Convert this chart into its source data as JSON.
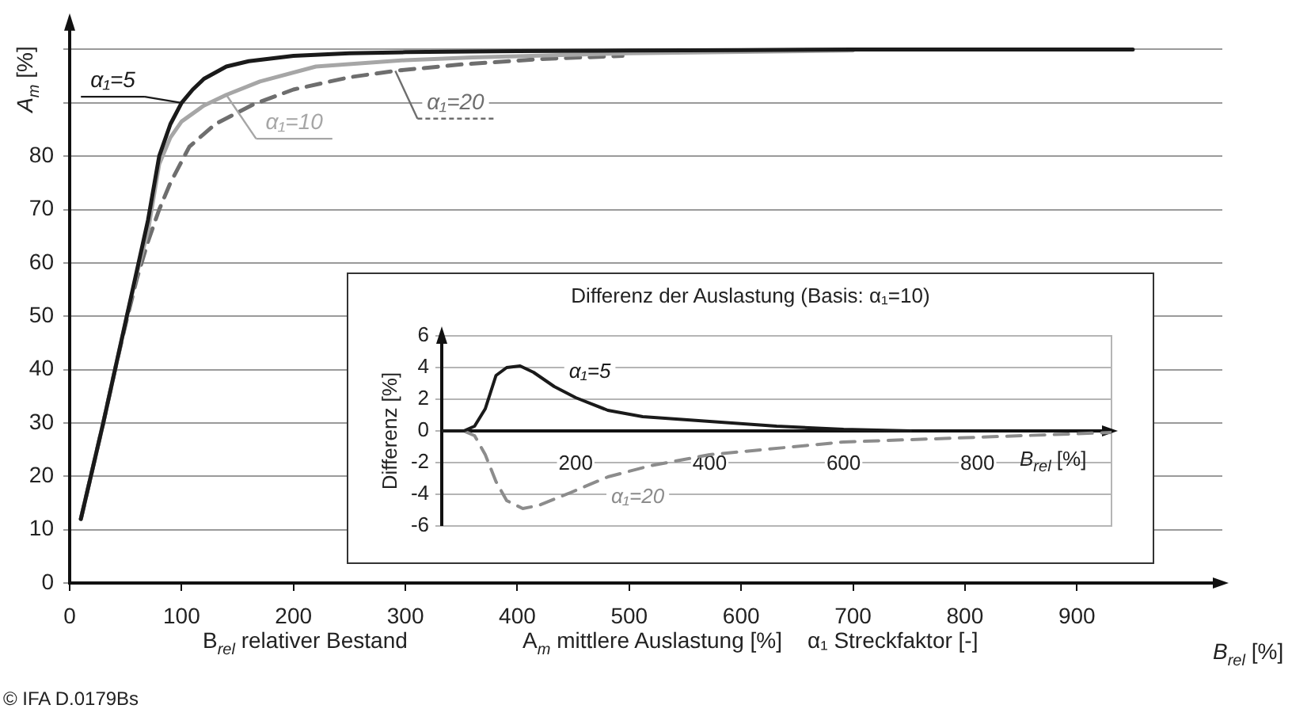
{
  "chart_data": [
    {
      "type": "line",
      "xlabel": "B$_{rel}$ [%]",
      "ylabel": "A$_{m}$ [%]",
      "xlim": [
        0,
        1030
      ],
      "ylim": [
        0,
        105
      ],
      "xticks": [
        0,
        100,
        200,
        300,
        400,
        500,
        600,
        700,
        800,
        900
      ],
      "yticks": [
        0,
        10,
        20,
        30,
        40,
        50,
        60,
        70,
        80,
        {
          "value": 90,
          "label": null
        },
        {
          "value": 100,
          "label": null
        }
      ],
      "grid": "y",
      "legend": "top left",
      "marker": "none",
      "annotations": [
        "B$_{rel}$   relativer Bestand",
        "A$_{m}$   mittlere Auslastung [%]",
        "α₁   Streckfaktor [-]",
        "© IFA D.0179Bs"
      ],
      "series": [
        {
          "name": "α₁=5",
          "color": "#1a1a1a",
          "line_style": "solid",
          "x": [
            10,
            20,
            30,
            40,
            50,
            60,
            70,
            80,
            90,
            100,
            110,
            120,
            140,
            160,
            200,
            250,
            300,
            400,
            500,
            600,
            700,
            800,
            950
          ],
          "values": [
            12,
            21,
            30,
            39.5,
            49,
            58.5,
            68,
            80,
            86,
            90,
            92.5,
            94.5,
            96.8,
            97.8,
            98.8,
            99.3,
            99.5,
            99.7,
            99.8,
            99.9,
            100,
            100,
            100
          ]
        },
        {
          "name": "α₁=10",
          "color": "#a6a6a6",
          "line_style": "solid",
          "x": [
            10,
            20,
            30,
            40,
            50,
            60,
            70,
            80,
            90,
            100,
            120,
            140,
            170,
            220,
            300,
            360,
            500,
            700
          ],
          "values": [
            12,
            21,
            30,
            39.5,
            49,
            58,
            66,
            78.5,
            83.5,
            86.5,
            89.5,
            91.5,
            94,
            96.8,
            98,
            98.5,
            99.3,
            99.8
          ]
        },
        {
          "name": "α₁=20",
          "color": "#6e6e6e",
          "line_style": "dashed",
          "x": [
            10,
            20,
            30,
            40,
            50,
            60,
            70,
            80,
            90,
            107,
            130,
            164,
            200,
            250,
            291,
            350,
            420,
            494
          ],
          "values": [
            12,
            21,
            30,
            39.5,
            48.5,
            57,
            64,
            70,
            75,
            81.8,
            86,
            89.7,
            92.5,
            94.8,
            96,
            97.2,
            98.2,
            98.8
          ]
        }
      ]
    },
    {
      "type": "line",
      "title": "Differenz der Auslastung (Basis: α₁=10)",
      "xlabel": "B$_{rel}$ [%]",
      "ylabel": "Differenz [%]",
      "xlim": [
        0,
        1000
      ],
      "ylim": [
        -6,
        6
      ],
      "xticks": [
        200,
        400,
        600,
        800
      ],
      "yticks": [
        -6,
        -4,
        -2,
        0,
        2,
        4,
        6
      ],
      "grid": "y",
      "marker": "none",
      "series": [
        {
          "name": "α₁=5",
          "color": "#1a1a1a",
          "line_style": "solid",
          "x": [
            0,
            33,
            49,
            65,
            81,
            97,
            117,
            137,
            168,
            200,
            248,
            300,
            400,
            500,
            600,
            700
          ],
          "values": [
            0,
            0,
            0.3,
            1.4,
            3.5,
            4,
            4.1,
            3.7,
            2.8,
            2.1,
            1.3,
            0.9,
            0.6,
            0.3,
            0.1,
            0
          ]
        },
        {
          "name": "α₁=20",
          "color": "#8c8c8c",
          "line_style": "dashed",
          "x": [
            0,
            33,
            49,
            65,
            81,
            97,
            121,
            145,
            192,
            248,
            311,
            400,
            600,
            800,
            1000
          ],
          "values": [
            0,
            0,
            -0.3,
            -1.5,
            -3.2,
            -4.4,
            -4.9,
            -4.7,
            -3.9,
            -2.9,
            -2.2,
            -1.5,
            -0.7,
            -0.4,
            -0.1
          ]
        }
      ]
    }
  ]
}
